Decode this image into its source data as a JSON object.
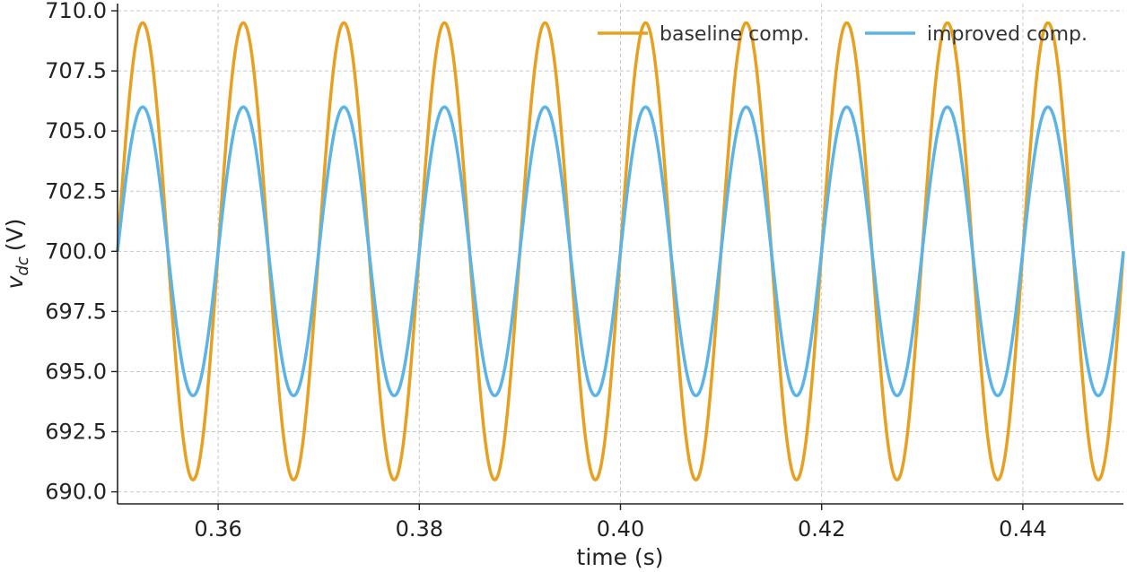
{
  "chart_data": {
    "type": "line",
    "title": "",
    "xlabel": "time (s)",
    "ylabel_main": "v",
    "ylabel_sub": "dc",
    "ylabel_unit": "(V)",
    "xlim": [
      0.35,
      0.45
    ],
    "ylim": [
      689.5,
      710.3
    ],
    "x_ticks": [
      0.36,
      0.38,
      0.4,
      0.42,
      0.44
    ],
    "x_tick_labels": [
      "0.36",
      "0.38",
      "0.40",
      "0.42",
      "0.44"
    ],
    "y_ticks": [
      690.0,
      692.5,
      695.0,
      697.5,
      700.0,
      702.5,
      705.0,
      707.5,
      710.0
    ],
    "y_tick_labels": [
      "690.0",
      "692.5",
      "695.0",
      "697.5",
      "700.0",
      "702.5",
      "705.0",
      "707.5",
      "710.0"
    ],
    "grid": true,
    "legend_position": "top-right",
    "series": [
      {
        "name": "baseline comp.",
        "color": "#E8A020",
        "function": "sine",
        "offset": 700.0,
        "amplitude": 9.5,
        "frequency_hz": 100
      },
      {
        "name": "improved comp.",
        "color": "#5BB4E5",
        "function": "sine",
        "offset": 700.0,
        "amplitude": 6.0,
        "frequency_hz": 100
      }
    ]
  }
}
